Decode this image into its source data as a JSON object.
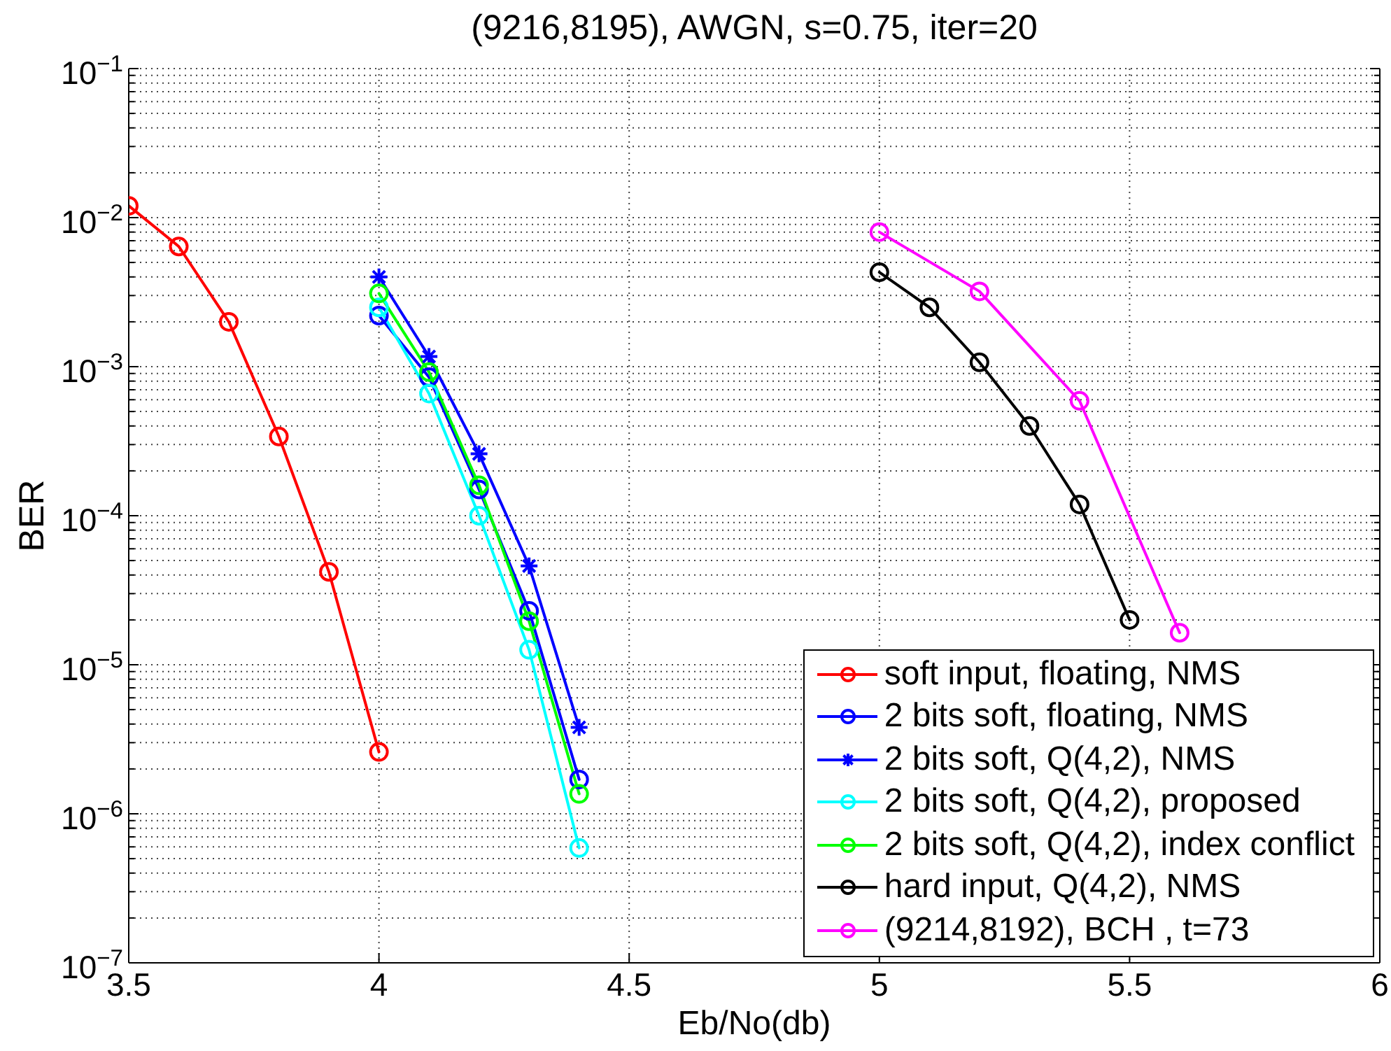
{
  "chart_data": {
    "type": "line",
    "title": "(9216,8195), AWGN, s=0.75, iter=20",
    "xlabel": "Eb/No(db)",
    "ylabel": "BER",
    "series": [
      {
        "name": "soft input, floating, NMS",
        "color": "#ff0000",
        "x": [
          3.5,
          3.6,
          3.7,
          3.8,
          3.9,
          4.0
        ],
        "values": [
          0.012,
          0.0064,
          0.002,
          0.00034,
          4.2e-05,
          2.6e-06
        ]
      },
      {
        "name": "2 bits soft, floating, NMS",
        "color": "#0000ff",
        "x": [
          4.0,
          4.1,
          4.2,
          4.3,
          4.4
        ],
        "values": [
          0.0022,
          0.00085,
          0.00015,
          2.3e-05,
          1.7e-06
        ]
      },
      {
        "name": "2 bits soft, Q(4,2), NMS",
        "color": "#0000ff",
        "marker": "cross",
        "x": [
          4.0,
          4.1,
          4.2,
          4.3,
          4.4
        ],
        "values": [
          0.004,
          0.00117,
          0.00026,
          4.6e-05,
          3.8e-06
        ]
      },
      {
        "name": "2 bits soft, Q(4,2), proposed",
        "color": "#00ffff",
        "x": [
          4.0,
          4.1,
          4.2,
          4.3,
          4.4
        ],
        "values": [
          0.0025,
          0.00066,
          0.0001,
          1.26e-05,
          5.9e-07
        ]
      },
      {
        "name": "2 bits soft, Q(4,2), index conflict",
        "color": "#00ff00",
        "x": [
          4.0,
          4.1,
          4.2,
          4.3,
          4.4
        ],
        "values": [
          0.0031,
          0.00092,
          0.00016,
          1.96e-05,
          1.36e-06
        ]
      },
      {
        "name": "hard input, Q(4,2), NMS",
        "color": "#000000",
        "x": [
          5.0,
          5.1,
          5.2,
          5.3,
          5.4,
          5.5
        ],
        "values": [
          0.0043,
          0.0025,
          0.00107,
          0.0004,
          0.000119,
          2e-05
        ]
      },
      {
        "name": "(9214,8192), BCH , t=73",
        "color": "#ff00ff",
        "x": [
          5.0,
          5.2,
          5.4,
          5.6
        ],
        "values": [
          0.008,
          0.0032,
          0.00059,
          1.64e-05
        ]
      }
    ],
    "xlim": [
      3.5,
      6
    ],
    "xticks": [
      3.5,
      4,
      4.5,
      5,
      5.5,
      6
    ],
    "ylim": [
      1e-07,
      0.1
    ],
    "yticks": [
      {
        "value": 1e-07,
        "label": "10$^{−7}$"
      },
      {
        "value": 2e-07,
        "label": null
      },
      {
        "value": 3e-07,
        "label": null
      },
      {
        "value": 4e-07,
        "label": null
      },
      {
        "value": 5e-07,
        "label": null
      },
      {
        "value": 6e-07,
        "label": null
      },
      {
        "value": 7e-07,
        "label": null
      },
      {
        "value": 8e-07,
        "label": null
      },
      {
        "value": 9e-07,
        "label": null
      },
      {
        "value": 1e-06,
        "label": "10$^{−6}$"
      },
      {
        "value": 2e-06,
        "label": null
      },
      {
        "value": 3e-06,
        "label": null
      },
      {
        "value": 4e-06,
        "label": null
      },
      {
        "value": 5e-06,
        "label": null
      },
      {
        "value": 6e-06,
        "label": null
      },
      {
        "value": 7e-06,
        "label": null
      },
      {
        "value": 8e-06,
        "label": null
      },
      {
        "value": 9e-06,
        "label": null
      },
      {
        "value": 1e-05,
        "label": "10$^{−5}$"
      },
      {
        "value": 2e-05,
        "label": null
      },
      {
        "value": 3e-05,
        "label": null
      },
      {
        "value": 4e-05,
        "label": null
      },
      {
        "value": 5e-05,
        "label": null
      },
      {
        "value": 6e-05,
        "label": null
      },
      {
        "value": 7e-05,
        "label": null
      },
      {
        "value": 8e-05,
        "label": null
      },
      {
        "value": 9e-05,
        "label": null
      },
      {
        "value": 0.0001,
        "label": "10$^{−4}$"
      },
      {
        "value": 0.0002,
        "label": null
      },
      {
        "value": 0.0003,
        "label": null
      },
      {
        "value": 0.0004,
        "label": null
      },
      {
        "value": 0.0005,
        "label": null
      },
      {
        "value": 0.0006,
        "label": null
      },
      {
        "value": 0.0007,
        "label": null
      },
      {
        "value": 0.0008,
        "label": null
      },
      {
        "value": 0.0009,
        "label": null
      },
      {
        "value": 0.001,
        "label": "10$^{−3}$"
      },
      {
        "value": 0.002,
        "label": null
      },
      {
        "value": 0.003,
        "label": null
      },
      {
        "value": 0.004,
        "label": null
      },
      {
        "value": 0.005,
        "label": null
      },
      {
        "value": 0.006,
        "label": null
      },
      {
        "value": 0.007,
        "label": null
      },
      {
        "value": 0.008,
        "label": null
      },
      {
        "value": 0.009,
        "label": null
      },
      {
        "value": 0.01,
        "label": "10$^{−2}$"
      },
      {
        "value": 0.02,
        "label": null
      },
      {
        "value": 0.03,
        "label": null
      },
      {
        "value": 0.04,
        "label": null
      },
      {
        "value": 0.05,
        "label": null
      },
      {
        "value": 0.06,
        "label": null
      },
      {
        "value": 0.07,
        "label": null
      },
      {
        "value": 0.08,
        "label": null
      },
      {
        "value": 0.09,
        "label": null
      },
      {
        "value": 0.1,
        "label": "10$^{−1}$"
      }
    ],
    "log": true,
    "grid": true,
    "legend": "bottom right",
    "marker": "circle",
    "line_style": "solid"
  }
}
